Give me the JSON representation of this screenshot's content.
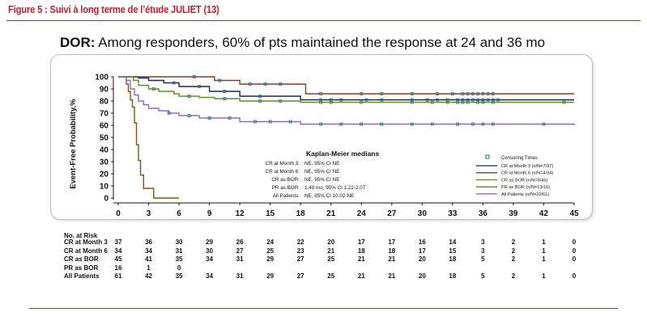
{
  "figure_title": "Figure 5 : Suivi à long terme de l’étude JULIET (13)",
  "subtitle": {
    "bold": "DOR:",
    "rest": " Among responders, 60% of pts maintained the response at 24 and 36 mo"
  },
  "colors": {
    "accent": "#c0202f",
    "cr_month3": "#1c2a4a",
    "cr_month6": "#8b3a2a",
    "cr_bor": "#5e8f2a",
    "pr_bor": "#7a5a10",
    "all": "#8e6fb0",
    "censor": "#2f6d8a"
  },
  "chart_data": {
    "type": "line",
    "ylabel": "Event-Free Probability,%",
    "xlim": [
      0,
      45
    ],
    "ylim": [
      0,
      100
    ],
    "xticks": [
      0,
      3,
      6,
      9,
      12,
      15,
      18,
      21,
      24,
      27,
      30,
      33,
      36,
      39,
      42,
      45
    ],
    "yticks": [
      0,
      10,
      20,
      30,
      40,
      50,
      60,
      70,
      80,
      90,
      100
    ],
    "medians_title": "Kaplan-Meier medians",
    "medians": [
      {
        "label": "CR at Month 3:",
        "value": "NE, 95% CI NE"
      },
      {
        "label": "CR at Month 6:",
        "value": "NE, 95% CI NE"
      },
      {
        "label": "CR as BOR:",
        "value": "NE, 95% CI NE"
      },
      {
        "label": "PR as BOR:",
        "value": "1.49 mo, 95% CI 1.22-2.07"
      },
      {
        "label": "All Patients:",
        "value": "NE, 95% CI 10.02-NE"
      }
    ],
    "legend_title": "Censoring Times",
    "legend_position": "right",
    "series": [
      {
        "name": "CR at Month 3 (n/N=7/37)",
        "color": "#1c2a4a",
        "x": [
          0,
          1.0,
          2.0,
          3.0,
          4.5,
          6.0,
          9.0,
          12.0,
          18.0,
          45.0
        ],
        "y": [
          100,
          100,
          99,
          97,
          95,
          92,
          88,
          84,
          81,
          81
        ],
        "censor_x": [
          5.5,
          8.0,
          10.5,
          14.0,
          20.0,
          21.0,
          22.0,
          24.5,
          26.0,
          29.0,
          30.5,
          31.5,
          32.5,
          33.5,
          34.0,
          34.5,
          35.0,
          35.5,
          36.0,
          36.5,
          37.0,
          37.5
        ]
      },
      {
        "name": "CR at Month 6 (n/N=4/34)",
        "color": "#8b3a2a",
        "x": [
          0,
          6.0,
          9.5,
          12.0,
          18.5,
          45.0
        ],
        "y": [
          100,
          100,
          97,
          94,
          86,
          86
        ],
        "censor_x": [
          7.5,
          10.0,
          13.0,
          14.5,
          16.0,
          20.0,
          24.0,
          26.0,
          29.0,
          31.5,
          33.0,
          34.0,
          34.5,
          35.0,
          35.5,
          36.0,
          36.5,
          37.0
        ]
      },
      {
        "name": "CR as BOR (n/N=9/45)",
        "color": "#5e8f2a",
        "x": [
          0,
          1.5,
          2.0,
          3.0,
          4.0,
          5.5,
          6.0,
          8.0,
          9.5,
          12.0,
          18.0,
          45.0
        ],
        "y": [
          100,
          97,
          93,
          90,
          88,
          86,
          84,
          83,
          82,
          80,
          79,
          79
        ],
        "censor_x": [
          3.5,
          7.0,
          10.5,
          14.0,
          16.0,
          20.0,
          21.0,
          24.0,
          29.0,
          31.0,
          32.5,
          33.5,
          34.0,
          34.5,
          35.5,
          36.0,
          37.0,
          44.0
        ]
      },
      {
        "name": "PR as BOR (n/N=13/16)",
        "color": "#7a5a10",
        "x": [
          0,
          0.8,
          1.0,
          1.2,
          1.4,
          1.6,
          1.8,
          2.0,
          2.2,
          2.5,
          3.5,
          6.0
        ],
        "y": [
          100,
          94,
          88,
          81,
          75,
          62,
          44,
          31,
          19,
          8,
          0,
          0
        ],
        "censor_x": []
      },
      {
        "name": "All Patients (n/N=22/61)",
        "color": "#8e6fb0",
        "x": [
          0,
          0.8,
          1.2,
          1.6,
          2.0,
          2.5,
          3.0,
          4.0,
          5.0,
          6.0,
          8.0,
          12.0,
          18.0,
          45.0
        ],
        "y": [
          100,
          97,
          90,
          85,
          80,
          77,
          74,
          72,
          70,
          68,
          66,
          63,
          61,
          60
        ],
        "censor_x": [
          5.0,
          7.0,
          9.0,
          11.0,
          13.5,
          15.0,
          17.0,
          20.0,
          22.0,
          24.0,
          26.0,
          29.0,
          31.0,
          33.5,
          35.0,
          36.0,
          37.0,
          42.0
        ]
      }
    ]
  },
  "risk_table": {
    "header": "No. at Risk",
    "rows": [
      {
        "label": "CR at Month 3",
        "values": [
          "37",
          "36",
          "30",
          "29",
          "26",
          "24",
          "22",
          "20",
          "17",
          "17",
          "16",
          "14",
          "3",
          "2",
          "1",
          "0"
        ]
      },
      {
        "label": "CR at Month 6",
        "values": [
          "34",
          "34",
          "31",
          "30",
          "27",
          "25",
          "23",
          "21",
          "18",
          "18",
          "17",
          "15",
          "3",
          "2",
          "1",
          "0"
        ]
      },
      {
        "label": "CR as BOR",
        "values": [
          "45",
          "41",
          "35",
          "34",
          "31",
          "29",
          "27",
          "25",
          "21",
          "21",
          "20",
          "18",
          "5",
          "2",
          "1",
          "0"
        ]
      },
      {
        "label": "PR as BOR",
        "values": [
          "16",
          "1",
          "0",
          "",
          "",
          "",
          "",
          "",
          "",
          "",
          "",
          "",
          "",
          "",
          "",
          ""
        ]
      },
      {
        "label": "All Patients",
        "values": [
          "61",
          "42",
          "35",
          "34",
          "31",
          "29",
          "27",
          "25",
          "21",
          "21",
          "20",
          "18",
          "5",
          "2",
          "1",
          "0"
        ]
      }
    ]
  }
}
